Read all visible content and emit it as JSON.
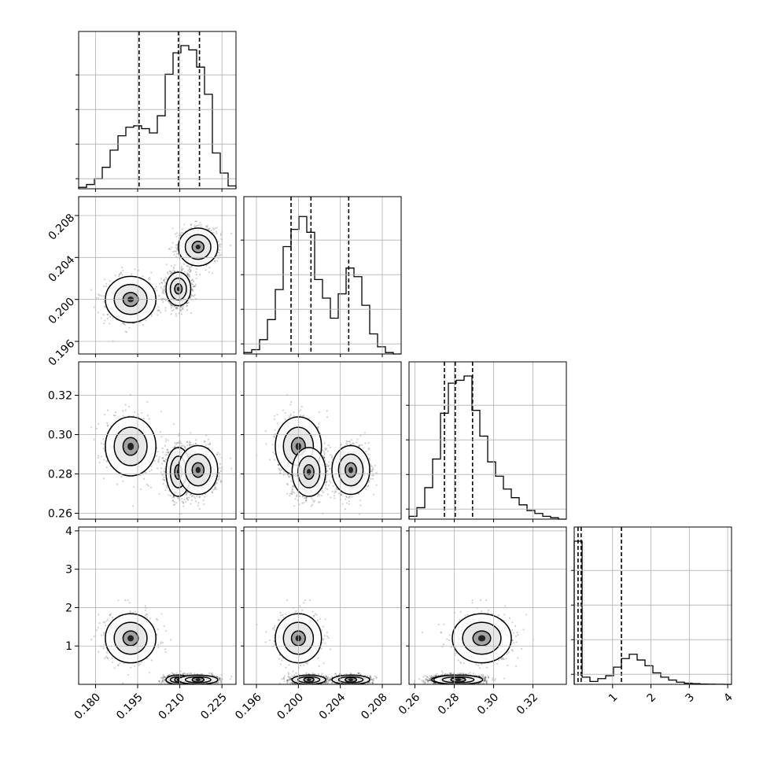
{
  "chart_data": {
    "type": "corner",
    "variables": [
      {
        "index": 0,
        "range": [
          0.174,
          0.23
        ],
        "ticks": [
          0.18,
          0.195,
          0.21,
          0.225
        ],
        "tick_labels": [
          "0.180",
          "0.195",
          "0.210",
          "0.225"
        ],
        "quantiles": [
          0.1955,
          0.2095,
          0.217
        ],
        "hist_counts": [
          0.01,
          0.03,
          0.07,
          0.15,
          0.27,
          0.37,
          0.43,
          0.44,
          0.42,
          0.39,
          0.51,
          0.8,
          0.95,
          1.0,
          0.97,
          0.85,
          0.66,
          0.25,
          0.11,
          0.02
        ]
      },
      {
        "index": 1,
        "range": [
          0.1948,
          0.2098
        ],
        "ticks": [
          0.196,
          0.2,
          0.204,
          0.208
        ],
        "tick_labels": [
          "0.196",
          "0.200",
          "0.204",
          "0.208"
        ],
        "quantiles": [
          0.1993,
          0.2012,
          0.2048
        ],
        "hist_counts": [
          0.01,
          0.03,
          0.1,
          0.24,
          0.45,
          0.75,
          0.87,
          0.96,
          0.85,
          0.52,
          0.39,
          0.25,
          0.42,
          0.6,
          0.54,
          0.34,
          0.14,
          0.05,
          0.01,
          0.0
        ]
      },
      {
        "index": 2,
        "range": [
          0.257,
          0.337
        ],
        "ticks": [
          0.26,
          0.28,
          0.3,
          0.32
        ],
        "tick_labels": [
          "0.26",
          "0.28",
          "0.30",
          "0.32"
        ],
        "quantiles": [
          0.275,
          0.2805,
          0.2893
        ],
        "hist_counts": [
          0.02,
          0.08,
          0.22,
          0.42,
          0.74,
          0.95,
          0.97,
          1.0,
          0.76,
          0.58,
          0.4,
          0.3,
          0.21,
          0.15,
          0.1,
          0.06,
          0.04,
          0.02,
          0.01,
          0.0
        ]
      },
      {
        "index": 3,
        "range": [
          0.0,
          4.1
        ],
        "ticks": [
          1,
          2,
          3,
          4
        ],
        "tick_labels": [
          "1",
          "2",
          "3",
          "4"
        ],
        "quantiles": [
          0.1,
          0.18,
          1.23
        ],
        "hist_counts": [
          1.0,
          0.05,
          0.02,
          0.04,
          0.06,
          0.12,
          0.18,
          0.21,
          0.17,
          0.13,
          0.08,
          0.05,
          0.03,
          0.015,
          0.008,
          0.005,
          0.002,
          0.001,
          0.0005,
          0.0
        ]
      }
    ],
    "grid": true,
    "y_ticks_hist": [
      0.05,
      0.3,
      0.55,
      0.8
    ],
    "pairs": [
      {
        "x": 0,
        "y": 1
      },
      {
        "x": 0,
        "y": 2
      },
      {
        "x": 1,
        "y": 2
      },
      {
        "x": 0,
        "y": 3
      },
      {
        "x": 1,
        "y": 3
      },
      {
        "x": 2,
        "y": 3
      }
    ],
    "clusters": [
      {
        "v0": 0.1925,
        "v1": 0.2,
        "v2": 0.294,
        "v3": 1.2,
        "weight": 0.25
      },
      {
        "v0": 0.2095,
        "v1": 0.201,
        "v2": 0.281,
        "v3": 0.12,
        "weight": 0.4
      },
      {
        "v0": 0.2165,
        "v1": 0.205,
        "v2": 0.282,
        "v3": 0.12,
        "weight": 0.35
      }
    ],
    "colors": {
      "hist_line": "#000000",
      "quantile_line": "#000000",
      "scatter": "#000000",
      "grid": "#b0b0b0",
      "axes": "#000000"
    }
  }
}
